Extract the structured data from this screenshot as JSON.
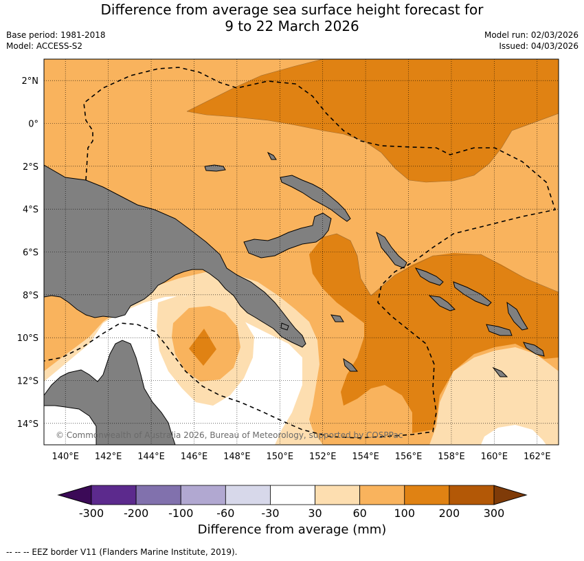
{
  "header": {
    "title_line1": "Difference from average sea surface height forecast for",
    "title_line2": "9 to 22 March 2026",
    "base_period": "Base period: 1981-2018",
    "model": "Model: ACCESS-S2",
    "model_run": "Model run: 02/03/2026",
    "issued": "Issued: 04/03/2026"
  },
  "map": {
    "lon_labels": [
      "140°E",
      "142°E",
      "144°E",
      "146°E",
      "148°E",
      "150°E",
      "152°E",
      "154°E",
      "156°E",
      "158°E",
      "160°E",
      "162°E"
    ],
    "lon_values": [
      140,
      142,
      144,
      146,
      148,
      150,
      152,
      154,
      156,
      158,
      160,
      162
    ],
    "lat_labels": [
      "2°N",
      "0°",
      "2°S",
      "4°S",
      "6°S",
      "8°S",
      "10°S",
      "12°S",
      "14°S"
    ],
    "lat_values": [
      2,
      0,
      -2,
      -4,
      -6,
      -8,
      -10,
      -12,
      -14
    ],
    "lon_range": [
      139,
      163
    ],
    "lat_range": [
      -15,
      3
    ],
    "copyright": "© Commonwealth of Australia 2026, Bureau of Meteorology, supported by COSPPac",
    "colors": {
      "land": "#808080",
      "ocean_100_200": "#e08213",
      "ocean_60_100": "#f9b35d",
      "ocean_30_60": "#fddeb0",
      "ocean_neutral": "#ffffff",
      "ocean_neg_30_60": "#d7d8ea"
    }
  },
  "colorbar": {
    "tick_labels": [
      "-300",
      "-200",
      "-100",
      "-60",
      "-30",
      "30",
      "60",
      "100",
      "200",
      "300"
    ],
    "colors": [
      "#3b0a57",
      "#5c2a8d",
      "#8171ad",
      "#b1a8d1",
      "#d7d8ea",
      "#ffffff",
      "#fddeb0",
      "#f9b35d",
      "#e08213",
      "#b35806",
      "#7f3b08"
    ],
    "title": "Difference from average (mm)"
  },
  "footer": {
    "legend_text": "--  --  -- EEZ border V11 (Flanders Marine Institute, 2019)."
  }
}
